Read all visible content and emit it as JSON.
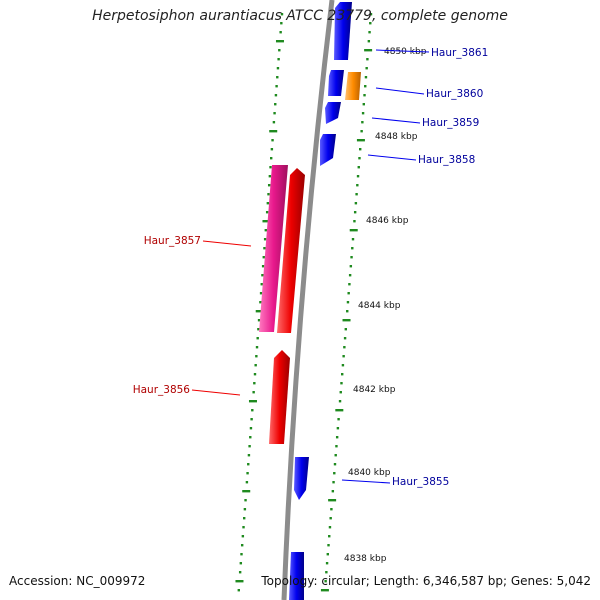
{
  "title": "Herpetosiphon aurantiacus ATCC 23779, complete genome",
  "footer": {
    "accession": "Accession: NC_009972",
    "summary": "Topology: circular; Length: 6,346,587 bp; Genes: 5,042"
  },
  "colors": {
    "backbone": "#8c8c8c",
    "ticks": "#1f8a1f",
    "forward_gene": "#0000ee",
    "reverse_gene": "#ee0000",
    "pink_gene": "#e8188c",
    "orange_gene": "#ff8c00",
    "forward_label": "#00009c",
    "reverse_label": "#b00000"
  },
  "scale_labels": [
    "4850 kbp",
    "4848 kbp",
    "4846 kbp",
    "4844 kbp",
    "4842 kbp",
    "4840 kbp",
    "4838 kbp"
  ],
  "gene_labels": [
    {
      "name": "Haur_3861",
      "strand": "forward"
    },
    {
      "name": "Haur_3860",
      "strand": "forward"
    },
    {
      "name": "Haur_3859",
      "strand": "forward"
    },
    {
      "name": "Haur_3858",
      "strand": "forward"
    },
    {
      "name": "Haur_3857",
      "strand": "reverse"
    },
    {
      "name": "Haur_3856",
      "strand": "reverse"
    },
    {
      "name": "Haur_3855",
      "strand": "forward"
    }
  ]
}
